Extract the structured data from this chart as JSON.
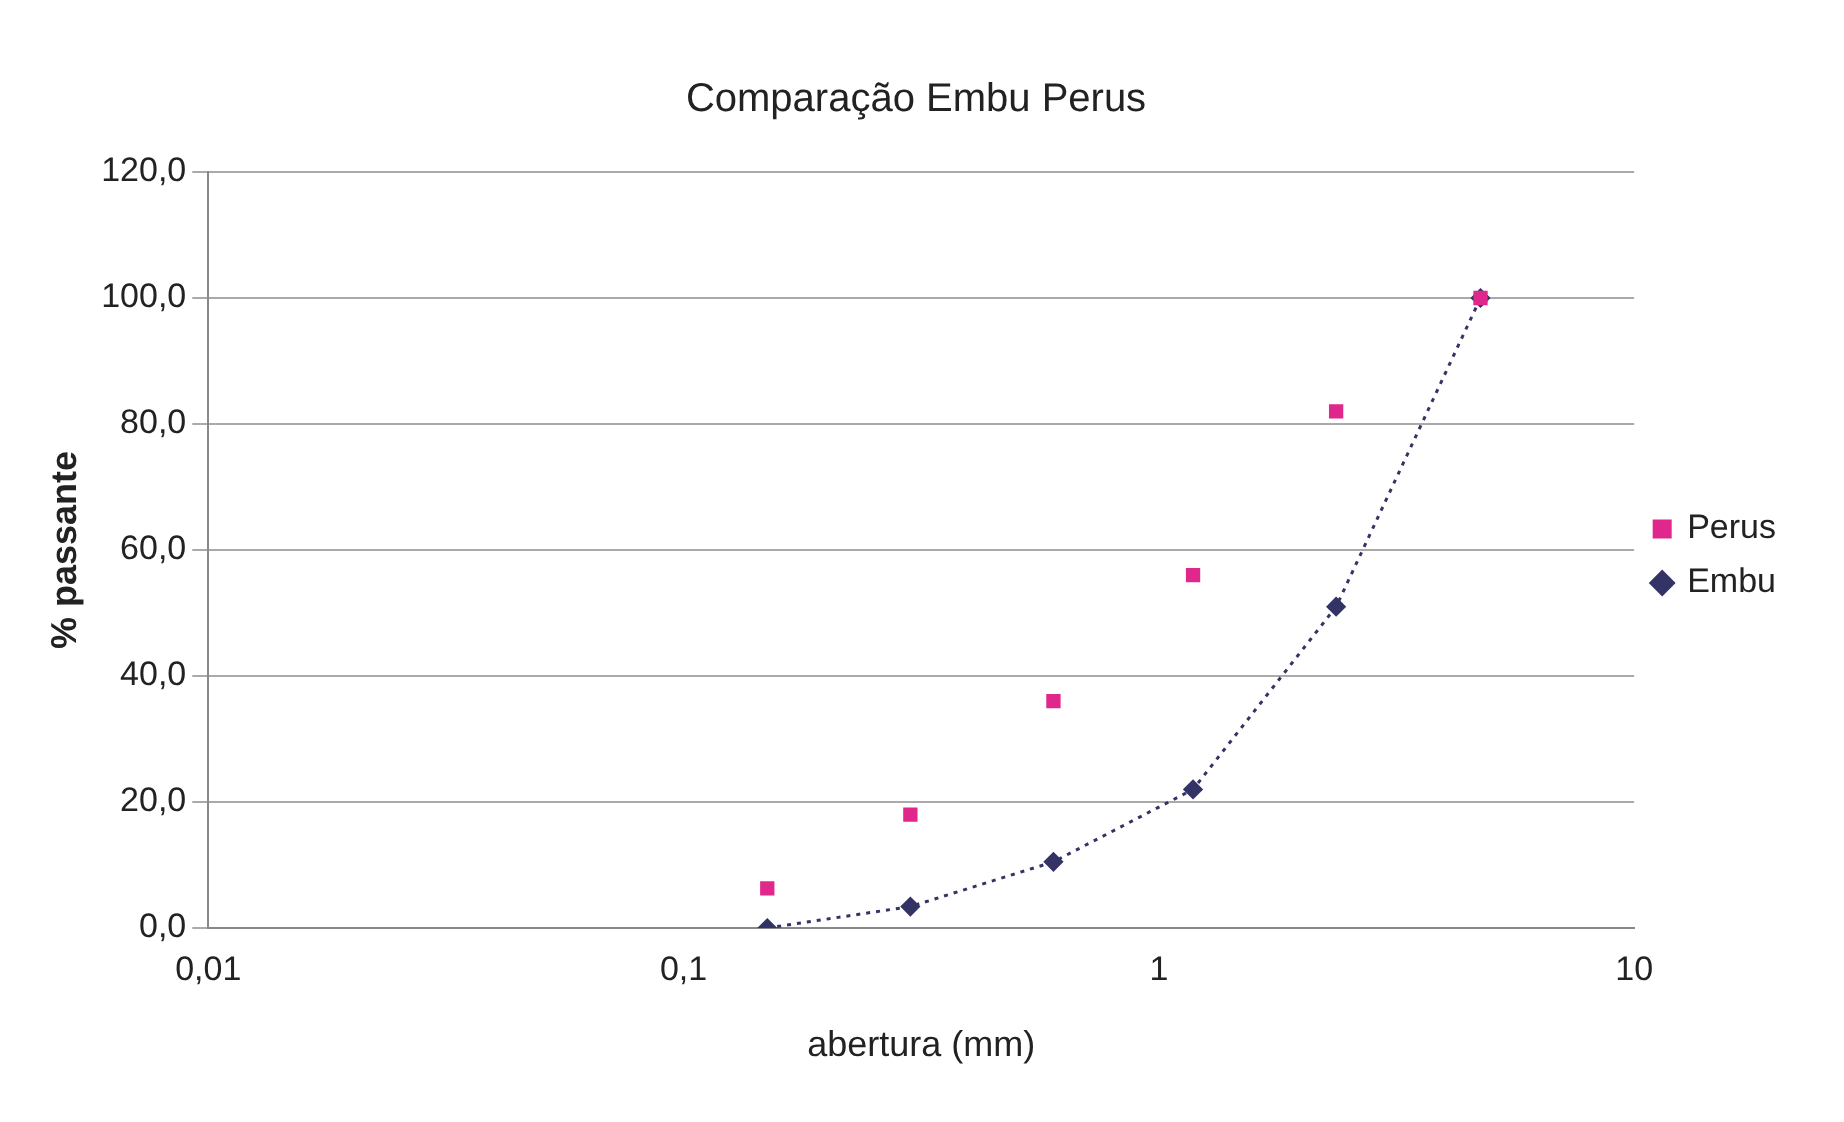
{
  "chart_data": {
    "type": "scatter",
    "title": "Comparação Embu Perus",
    "xlabel": "abertura (mm)",
    "ylabel": "% passante",
    "log": "x",
    "xlim": [
      0.01,
      10
    ],
    "xticks": [
      {
        "value": 0.01,
        "label": "0,01"
      },
      {
        "value": 0.1,
        "label": "0,1"
      },
      1,
      10
    ],
    "ylim": [
      0,
      120
    ],
    "yticks": [
      {
        "value": 0,
        "label": "0,0"
      },
      {
        "value": 20,
        "label": "20,0"
      },
      {
        "value": 40,
        "label": "40,0"
      },
      {
        "value": 60,
        "label": "60,0"
      },
      {
        "value": 80,
        "label": "80,0"
      },
      {
        "value": 100,
        "label": "100,0"
      },
      {
        "value": 120,
        "label": "120,0"
      }
    ],
    "grid": "y",
    "legend": "right",
    "series": [
      {
        "name": "Embu",
        "type": "line",
        "color": "#333366",
        "marker": "diamond",
        "line_style": "dotted",
        "x": [
          0.15,
          0.3,
          0.6,
          1.18,
          2.36,
          4.75
        ],
        "values": [
          0,
          3.4,
          10.5,
          22,
          51,
          100
        ]
      },
      {
        "name": "Perus",
        "type": "scatter",
        "color": "#e0288c",
        "marker": "square",
        "x": [
          0.15,
          0.3,
          0.6,
          1.18,
          2.36,
          4.75
        ],
        "values": [
          6.3,
          18,
          36,
          56,
          82,
          100
        ]
      }
    ]
  }
}
